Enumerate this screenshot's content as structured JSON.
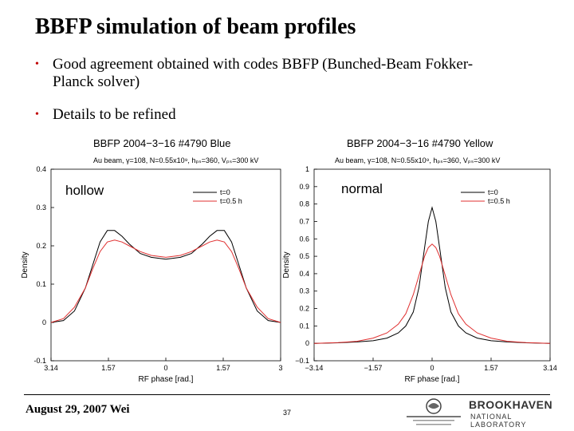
{
  "slide": {
    "title": "BBFP simulation of beam profiles",
    "bullets": [
      "Good agreement obtained with codes BBFP (Bunched-Beam Fokker-Planck solver)",
      "Details to be refined"
    ],
    "bullet_line1a": "Good agreement obtained with codes BBFP (Bunched-Beam Fokker-",
    "bullet_line1b": "Planck solver)",
    "footer_date": "August 29, 2007 Wei",
    "page_number": "37",
    "logo_text_top": "BROOKHAVEN",
    "logo_text_bottom": "NATIONAL LABORATORY",
    "accent_color": "#c00000"
  },
  "chart_data": [
    {
      "type": "line",
      "title": "BBFP 2004−3−16 #4790 Blue",
      "subtitle": "Au beam, γ=108, N=0.55x10⁹, hₚₛ=360, Vₚₛ=300 kV",
      "annotation": "hollow",
      "xlabel": "RF phase [rad.]",
      "ylabel": "Density",
      "xlim": [
        -3.14,
        3.14
      ],
      "ylim": [
        -0.1,
        0.4
      ],
      "xticks": [
        "3.14",
        "1.57",
        "0",
        "1.57",
        "3"
      ],
      "yticks": [
        "0.4",
        "0.3",
        "0.2",
        "0.1",
        "0",
        "-0.1"
      ],
      "legend_position": "top-right",
      "series": [
        {
          "name": "t=0",
          "color": "#000000",
          "x": [
            -3.14,
            -2.8,
            -2.5,
            -2.2,
            -2.0,
            -1.8,
            -1.6,
            -1.4,
            -1.2,
            -1.0,
            -0.7,
            -0.4,
            0,
            0.4,
            0.7,
            1.0,
            1.2,
            1.4,
            1.6,
            1.8,
            2.0,
            2.2,
            2.5,
            2.8,
            3.14
          ],
          "y": [
            0.0,
            0.005,
            0.03,
            0.09,
            0.15,
            0.21,
            0.24,
            0.24,
            0.225,
            0.205,
            0.18,
            0.17,
            0.165,
            0.17,
            0.18,
            0.205,
            0.225,
            0.24,
            0.24,
            0.21,
            0.15,
            0.09,
            0.03,
            0.005,
            0.0
          ]
        },
        {
          "name": "t=0.5 h",
          "color": "#e03030",
          "x": [
            -3.14,
            -2.8,
            -2.5,
            -2.2,
            -2.0,
            -1.8,
            -1.6,
            -1.4,
            -1.2,
            -1.0,
            -0.7,
            -0.4,
            0,
            0.4,
            0.7,
            1.0,
            1.2,
            1.4,
            1.6,
            1.8,
            2.0,
            2.2,
            2.5,
            2.8,
            3.14
          ],
          "y": [
            0.0,
            0.01,
            0.04,
            0.09,
            0.14,
            0.185,
            0.21,
            0.215,
            0.21,
            0.2,
            0.185,
            0.175,
            0.17,
            0.175,
            0.185,
            0.2,
            0.21,
            0.215,
            0.21,
            0.185,
            0.14,
            0.09,
            0.04,
            0.01,
            0.0
          ]
        }
      ]
    },
    {
      "type": "line",
      "title": "BBFP 2004−3−16 #4790 Yellow",
      "subtitle": "Au beam, γ=108, N=0.55x10⁹, hₚₛ=360, Vₚₛ=300 kV",
      "annotation": "normal",
      "xlabel": "RF phase [rad.]",
      "ylabel": "Density",
      "xlim": [
        -3.14,
        3.14
      ],
      "ylim": [
        -0.1,
        1.0
      ],
      "xticks": [
        "−3.14",
        "−1.57",
        "0",
        "1.57",
        "3.14"
      ],
      "yticks": [
        "1",
        "0.9",
        "0.8",
        "0.7",
        "0.6",
        "0.5",
        "0.4",
        "0.3",
        "0.2",
        "0.1",
        "0",
        "−0.1"
      ],
      "legend_position": "top-right",
      "series": [
        {
          "name": "t=0",
          "color": "#000000",
          "x": [
            -3.14,
            -2.5,
            -2.0,
            -1.57,
            -1.2,
            -0.9,
            -0.7,
            -0.5,
            -0.35,
            -0.2,
            -0.1,
            0,
            0.1,
            0.2,
            0.35,
            0.5,
            0.7,
            0.9,
            1.2,
            1.57,
            2.0,
            2.5,
            3.14
          ],
          "y": [
            0.0,
            0.003,
            0.008,
            0.015,
            0.03,
            0.06,
            0.1,
            0.18,
            0.32,
            0.55,
            0.7,
            0.78,
            0.7,
            0.55,
            0.32,
            0.18,
            0.1,
            0.06,
            0.03,
            0.015,
            0.008,
            0.003,
            0.0
          ]
        },
        {
          "name": "t=0.5 h",
          "color": "#e03030",
          "x": [
            -3.14,
            -2.5,
            -2.0,
            -1.57,
            -1.2,
            -0.9,
            -0.7,
            -0.5,
            -0.35,
            -0.2,
            -0.1,
            0,
            0.1,
            0.2,
            0.35,
            0.5,
            0.7,
            0.9,
            1.2,
            1.57,
            2.0,
            2.5,
            3.14
          ],
          "y": [
            0.0,
            0.004,
            0.012,
            0.03,
            0.06,
            0.11,
            0.17,
            0.28,
            0.39,
            0.5,
            0.55,
            0.57,
            0.55,
            0.5,
            0.39,
            0.28,
            0.17,
            0.11,
            0.06,
            0.03,
            0.012,
            0.004,
            0.0
          ]
        }
      ]
    }
  ]
}
